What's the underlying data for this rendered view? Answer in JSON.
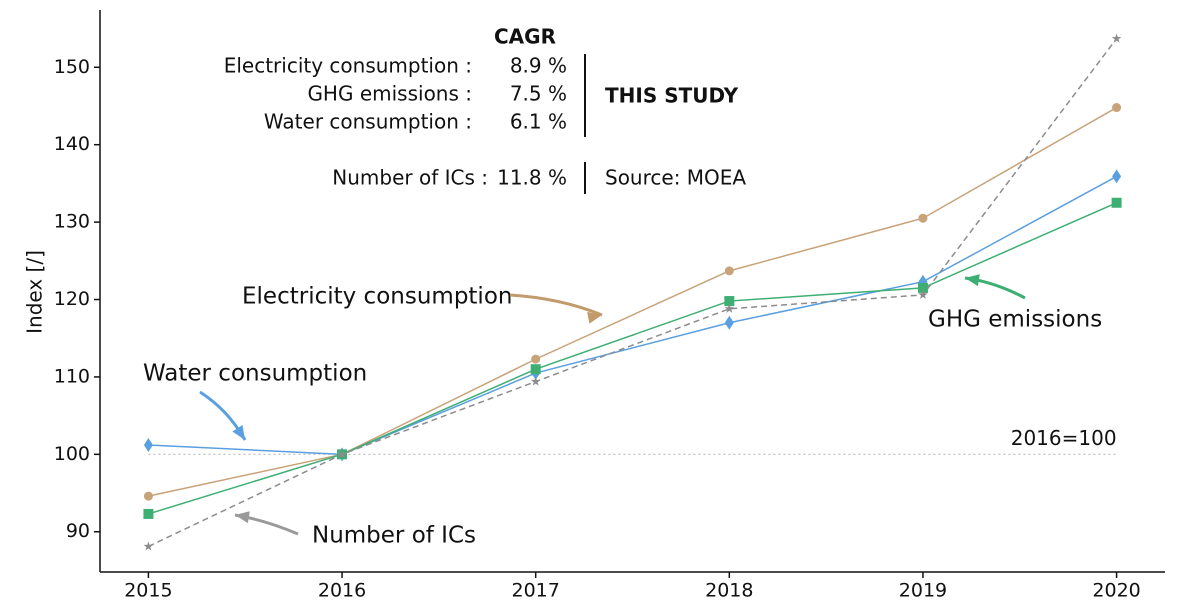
{
  "chart_data": {
    "type": "line",
    "y_label": "Index [/]",
    "x": [
      2015,
      2016,
      2017,
      2018,
      2019,
      2020
    ],
    "xlim": [
      2014.75,
      2020.25
    ],
    "xticks": [
      2015,
      2016,
      2017,
      2018,
      2019,
      2020
    ],
    "ylim": [
      84.8,
      157.4
    ],
    "yticks": [
      90,
      100,
      110,
      120,
      130,
      140,
      150
    ],
    "reference": {
      "value": 100,
      "label": "2016=100"
    },
    "series": [
      {
        "name": "Electricity consumption",
        "color": "#c8a278",
        "marker": "circle",
        "linestyle": "solid",
        "values": [
          94.6,
          100,
          112.3,
          123.7,
          130.5,
          144.8
        ]
      },
      {
        "name": "Water consumption",
        "color": "#5a9fe0",
        "marker": "diamond",
        "linestyle": "solid",
        "values": [
          101.2,
          100,
          110.5,
          117,
          122.3,
          135.9
        ]
      },
      {
        "name": "GHG emissions",
        "color": "#3daf72",
        "marker": "square",
        "linestyle": "solid",
        "values": [
          92.3,
          100,
          111,
          119.8,
          121.5,
          132.5
        ]
      },
      {
        "name": "Number of ICs",
        "color": "#8c8c8c",
        "marker": "star",
        "linestyle": "dashed",
        "values": [
          88.1,
          100,
          109.4,
          118.8,
          120.6,
          153.7
        ]
      }
    ],
    "cagr": {
      "title": "CAGR",
      "rows": [
        {
          "label": "Electricity consumption :",
          "value": "8.9 %"
        },
        {
          "label": "GHG emissions :",
          "value": "7.5 %"
        },
        {
          "label": "Water consumption :",
          "value": "6.1 %"
        }
      ],
      "group_label": "THIS STUDY",
      "extra": {
        "label": "Number of ICs :",
        "value": "11.8 %",
        "source": "Source: MOEA"
      }
    }
  }
}
